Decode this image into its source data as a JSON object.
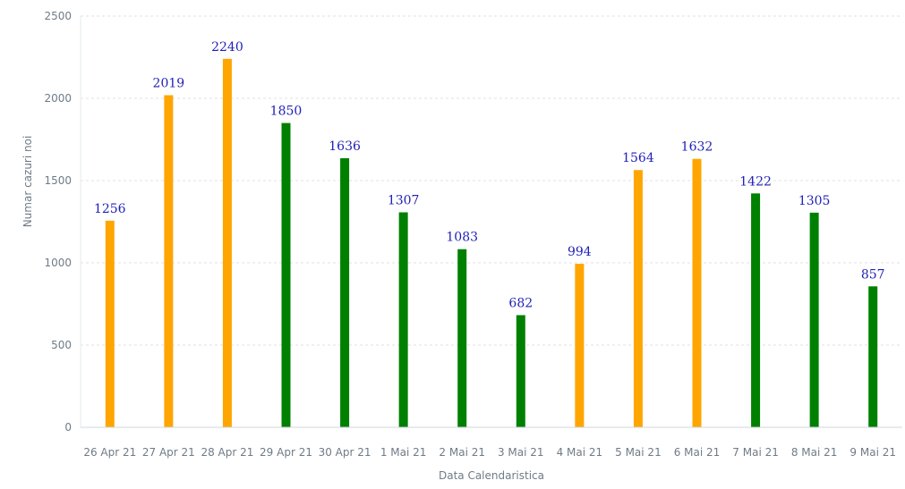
{
  "chart_data": {
    "type": "bar",
    "xlabel": "Data Calendaristica",
    "ylabel": "Numar cazuri noi",
    "ylim": [
      0,
      2500
    ],
    "yticks": [
      0,
      500,
      1000,
      1500,
      2000,
      2500
    ],
    "grid": true,
    "categories": [
      "26 Apr 21",
      "27 Apr 21",
      "28 Apr 21",
      "29 Apr 21",
      "30 Apr 21",
      "1 Mai 21",
      "2 Mai 21",
      "3 Mai 21",
      "4 Mai 21",
      "5 Mai 21",
      "6 Mai 21",
      "7 Mai 21",
      "8 Mai 21",
      "9 Mai 21"
    ],
    "values": [
      1256,
      2019,
      2240,
      1850,
      1636,
      1307,
      1083,
      682,
      994,
      1564,
      1632,
      1422,
      1305,
      857
    ],
    "bar_colors": [
      "#FFA500",
      "#FFA500",
      "#FFA500",
      "#008000",
      "#008000",
      "#008000",
      "#008000",
      "#008000",
      "#FFA500",
      "#FFA500",
      "#FFA500",
      "#008000",
      "#008000",
      "#008000"
    ],
    "data_labels": [
      "1256",
      "2019",
      "2240",
      "1850",
      "1636",
      "1307",
      "1083",
      "682",
      "994",
      "1564",
      "1632",
      "1422",
      "1305",
      "857"
    ],
    "colors": {
      "orange": "#FFA500",
      "green": "#008000",
      "label": "#1f1fb8",
      "grid": "#e0e0e0",
      "axis_text": "#6f7b86"
    }
  }
}
